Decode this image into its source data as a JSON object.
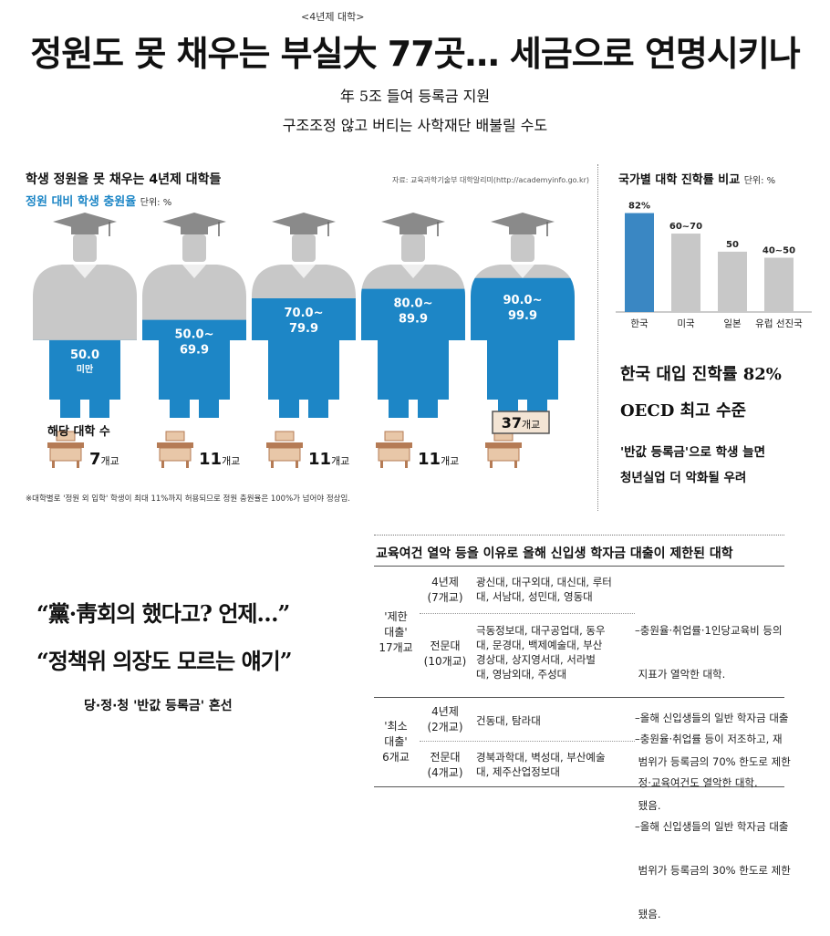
{
  "header": {
    "supertitle": "<4년제 대학>",
    "headline": "정원도 못 채우는 부실大 77곳… 세금으로 연명시키나",
    "sub1": "年 5조 들여 등록금 지원",
    "sub2": "구조조정 않고 버티는 사학재단 배불릴 수도"
  },
  "left_chart": {
    "title": "학생 정원을 못 채우는 4년제 대학들",
    "source": "자료: 교육과학기술부 대학알리미(http://academyinfo.go.kr)",
    "subtitle": "정원 대비 학생 충원율",
    "unit": "단위: %",
    "count_label": "해당 대학 수",
    "note": "※대학별로 '정원 외 입학' 학생이 최대 11%까지 허용되므로 정원 충원율은 100%가 넘어야 정상임."
  },
  "right_chart": {
    "title": "국가별 대학 진학률 비교",
    "unit": "단위: %"
  },
  "chart_data": [
    {
      "type": "bar",
      "title": "학생 정원을 못 채우는 4년제 대학들",
      "subtitle": "정원 대비 학생 충원율",
      "unit": "%",
      "categories": [
        "50.0 미만",
        "50.0~69.9",
        "70.0~79.9",
        "80.0~89.9",
        "90.0~99.9"
      ],
      "fill_levels": [
        0.44,
        0.59,
        0.75,
        0.82,
        0.9
      ],
      "counts": [
        7,
        11,
        11,
        11,
        37
      ],
      "count_unit": "개교",
      "fill_color": "#1d86c6",
      "base_color": "#c8c8c8"
    },
    {
      "type": "bar",
      "title": "국가별 대학 진학률 비교",
      "unit": "%",
      "categories": [
        "한국",
        "미국",
        "일본",
        "유럽 선진국"
      ],
      "values": [
        82,
        65,
        50,
        45
      ],
      "labels": [
        "82%",
        "60~70",
        "50",
        "40~50"
      ],
      "colors": [
        "#3a87c3",
        "#c8c8c8",
        "#c8c8c8",
        "#c8c8c8"
      ]
    }
  ],
  "right_text": {
    "big1": "한국 대입 진학률 82%",
    "big2": "OECD 최고 수준",
    "sm1": "'반값 등록금'으로 학생 늘면",
    "sm2": "청년실업 더 악화될 우려"
  },
  "quotes": {
    "q1": "“黨·靑회의 했다고? 언제…”",
    "q2": "“정책위 의장도 모르는 얘기”",
    "sub": "당·정·청 '반값 등록금' 혼선"
  },
  "table": {
    "title": "교육여건 열악 등을 이유로 올해 신입생 학자금 대출이 제한된 대학",
    "groups": [
      {
        "name": [
          "'제한",
          "대출'",
          "17개교"
        ],
        "rows": [
          {
            "type": [
              "4년제",
              "(7개교)"
            ],
            "schools": [
              "광신대, 대구외대, 대신대, 루터",
              "대, 서남대, 성민대, 영동대"
            ]
          },
          {
            "type": [
              "전문대",
              "(10개교)"
            ],
            "schools": [
              "극동정보대, 대구공업대, 동우",
              "대, 문경대, 백제예술대, 부산",
              "경상대, 상지영서대, 서라벌",
              "대, 영남외대, 주성대"
            ]
          }
        ],
        "reasons": [
          [
            "–충원율·취업률·1인당교육비 등의",
            " 지표가 열악한 대학."
          ],
          [
            "–올해 신입생들의 일반 학자금 대출",
            " 범위가 등록금의 70% 한도로 제한",
            " 됐음."
          ]
        ]
      },
      {
        "name": [
          "'최소",
          "대출'",
          "6개교"
        ],
        "rows": [
          {
            "type": [
              "4년제",
              "(2개교)"
            ],
            "schools": [
              "건동대, 탐라대"
            ]
          },
          {
            "type": [
              "전문대",
              "(4개교)"
            ],
            "schools": [
              "경북과학대, 벽성대, 부산예술",
              "대, 제주산업정보대"
            ]
          }
        ],
        "reasons": [
          [
            "–충원율·취업률 등이 저조하고, 재",
            " 정·교육여건도 열악한 대학."
          ],
          [
            "–올해 신입생들의 일반 학자금 대출",
            " 범위가 등록금의 30% 한도로 제한",
            " 됐음."
          ]
        ]
      }
    ]
  }
}
